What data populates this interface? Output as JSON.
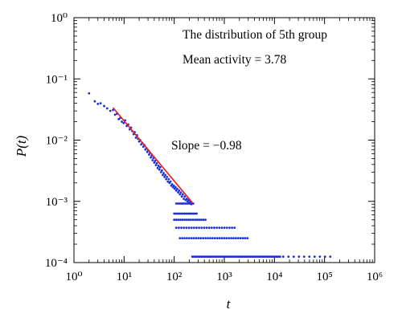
{
  "chart_data": {
    "type": "scatter",
    "title": "",
    "xlabel": "t",
    "ylabel": "P(t)",
    "xscale": "log",
    "yscale": "log",
    "xlim": [
      1,
      1000000
    ],
    "ylim": [
      0.0001,
      1
    ],
    "grid": false,
    "x_ticks": [
      {
        "value": 1,
        "label": "10⁰"
      },
      {
        "value": 10,
        "label": "10¹"
      },
      {
        "value": 100,
        "label": "10²"
      },
      {
        "value": 1000,
        "label": "10³"
      },
      {
        "value": 10000,
        "label": "10⁴"
      },
      {
        "value": 100000,
        "label": "10⁵"
      },
      {
        "value": 1000000,
        "label": "10⁶"
      }
    ],
    "y_ticks": [
      {
        "value": 1,
        "label": "10⁰"
      },
      {
        "value": 0.1,
        "label": "10⁻¹"
      },
      {
        "value": 0.01,
        "label": "10⁻²"
      },
      {
        "value": 0.001,
        "label": "10⁻³"
      },
      {
        "value": 0.0001,
        "label": "10⁻⁴"
      }
    ],
    "annotations": [
      "The distribution of 5th group",
      "Mean activity = 3.78",
      "Slope = −0.98"
    ],
    "series": [
      {
        "kind": "points",
        "color": "#1f2fd6",
        "points": [
          [
            2.0,
            0.058
          ],
          [
            2.6,
            0.043
          ],
          [
            3.0,
            0.039
          ],
          [
            3.4,
            0.04
          ],
          [
            4.0,
            0.036
          ],
          [
            4.6,
            0.033
          ],
          [
            5.3,
            0.03
          ],
          [
            6.0,
            0.031
          ],
          [
            6.6,
            0.026
          ],
          [
            7.2,
            0.027
          ],
          [
            7.8,
            0.022
          ],
          [
            8.4,
            0.023
          ],
          [
            9.0,
            0.02
          ],
          [
            9.8,
            0.019
          ],
          [
            10.5,
            0.021
          ],
          [
            11.3,
            0.017
          ],
          [
            12.1,
            0.018
          ],
          [
            13.0,
            0.015
          ],
          [
            13.8,
            0.016
          ],
          [
            14.6,
            0.014
          ],
          [
            15.5,
            0.0125
          ],
          [
            16.3,
            0.0135
          ],
          [
            17.2,
            0.011
          ],
          [
            18.1,
            0.012
          ],
          [
            19.0,
            0.0105
          ],
          [
            20.0,
            0.0095
          ],
          [
            21.0,
            0.01
          ],
          [
            22.0,
            0.0085
          ],
          [
            23.1,
            0.009
          ],
          [
            24.2,
            0.0078
          ],
          [
            25.4,
            0.0083
          ],
          [
            26.6,
            0.007
          ],
          [
            27.8,
            0.0074
          ],
          [
            29.0,
            0.0064
          ],
          [
            30.2,
            0.0068
          ],
          [
            31.5,
            0.0058
          ],
          [
            32.8,
            0.0062
          ],
          [
            34.2,
            0.0052
          ],
          [
            35.6,
            0.0056
          ],
          [
            37.0,
            0.0047
          ],
          [
            38.5,
            0.0051
          ],
          [
            40.0,
            0.0043
          ],
          [
            41.6,
            0.0046
          ],
          [
            43.3,
            0.0039
          ],
          [
            45.0,
            0.0042
          ],
          [
            46.8,
            0.0035
          ],
          [
            48.7,
            0.0038
          ],
          [
            50.6,
            0.0033
          ],
          [
            52.6,
            0.0036
          ],
          [
            54.7,
            0.003
          ],
          [
            56.9,
            0.0032
          ],
          [
            59.2,
            0.0027
          ],
          [
            61.6,
            0.0029
          ],
          [
            64.0,
            0.0025
          ],
          [
            66.5,
            0.0027
          ],
          [
            69.1,
            0.0023
          ],
          [
            71.8,
            0.0025
          ],
          [
            74.7,
            0.0021
          ],
          [
            77.7,
            0.0023
          ],
          [
            80.8,
            0.002
          ],
          [
            84.0,
            0.0021
          ],
          [
            87.3,
            0.0018
          ],
          [
            90.8,
            0.0019
          ],
          [
            94.4,
            0.0017
          ],
          [
            98.2,
            0.0018
          ],
          [
            102,
            0.0016
          ],
          [
            106,
            0.0017
          ],
          [
            110,
            0.0015
          ],
          [
            115,
            0.0016
          ],
          [
            120,
            0.0014
          ],
          [
            125,
            0.0015
          ],
          [
            130,
            0.0013
          ],
          [
            136,
            0.0014
          ],
          [
            142,
            0.0012
          ],
          [
            148,
            0.0013
          ],
          [
            155,
            0.0011
          ],
          [
            162,
            0.0012
          ],
          [
            169,
            0.00105
          ],
          [
            177,
            0.0011
          ],
          [
            185,
            0.001
          ],
          [
            193,
            0.00105
          ],
          [
            202,
            0.00095
          ],
          [
            211,
            0.001
          ],
          [
            220,
            0.0009
          ]
        ],
        "bands": [
          {
            "y": 0.00092,
            "x_from": 110,
            "x_to": 240,
            "count": 12
          },
          {
            "y": 0.00063,
            "x_from": 100,
            "x_to": 280,
            "count": 14
          },
          {
            "y": 0.0005,
            "x_from": 100,
            "x_to": 420,
            "count": 16
          },
          {
            "y": 0.00037,
            "x_from": 110,
            "x_to": 1600,
            "count": 24
          },
          {
            "y": 0.00025,
            "x_from": 130,
            "x_to": 2900,
            "count": 30
          },
          {
            "y": 0.000125,
            "x_from": 230,
            "x_to": 13000,
            "count": 60
          },
          {
            "y": 0.000125,
            "x_from": 15000,
            "x_to": 130000,
            "count": 10
          }
        ]
      },
      {
        "kind": "line",
        "color": "#e02020",
        "slope": -0.98,
        "points": [
          [
            6,
            0.034
          ],
          [
            230,
            0.00095
          ]
        ]
      }
    ]
  }
}
